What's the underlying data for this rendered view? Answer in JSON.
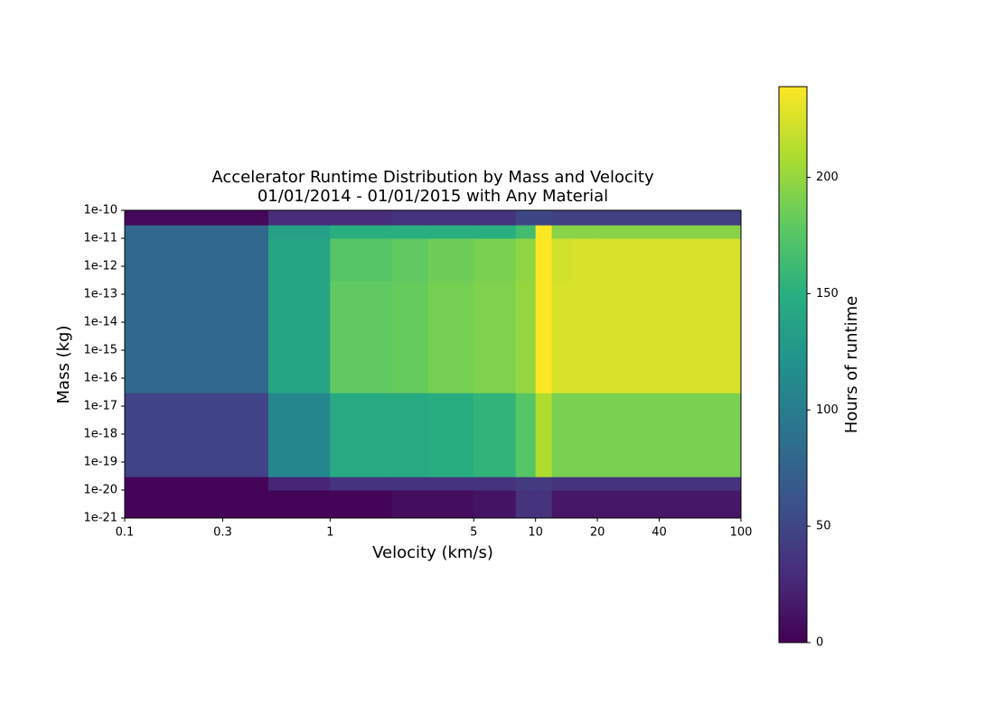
{
  "chart_data": {
    "type": "heatmap",
    "title": "Accelerator Runtime Distribution by Mass and Velocity",
    "subtitle": "01/01/2014 - 01/01/2015 with Any Material",
    "x_label": "Velocity (km/s)",
    "y_label": "Mass (kg)",
    "colorbar_label": "Hours of runtime",
    "colormap": "viridis",
    "x_log": true,
    "y_log": true,
    "x_edges": [
      0.1,
      0.5,
      1,
      2,
      3,
      5,
      8,
      10,
      12,
      15,
      20,
      25,
      100
    ],
    "y_edges": [
      1e-21,
      1e-20,
      3e-20,
      3e-17,
      3e-13,
      1e-11,
      3e-11,
      1e-10
    ],
    "values": [
      [
        3,
        3,
        3,
        8,
        8,
        12,
        35,
        35,
        15,
        15,
        15,
        15
      ],
      [
        3,
        25,
        35,
        35,
        35,
        35,
        40,
        40,
        35,
        35,
        35,
        35
      ],
      [
        48,
        110,
        145,
        145,
        148,
        155,
        175,
        210,
        190,
        190,
        190,
        190
      ],
      [
        80,
        140,
        180,
        182,
        188,
        192,
        200,
        239,
        225,
        225,
        225,
        225
      ],
      [
        80,
        140,
        175,
        180,
        185,
        190,
        198,
        239,
        222,
        225,
        225,
        225
      ],
      [
        80,
        135,
        150,
        150,
        150,
        150,
        165,
        239,
        195,
        195,
        195,
        195
      ],
      [
        5,
        30,
        30,
        35,
        35,
        35,
        50,
        50,
        45,
        45,
        45,
        45
      ]
    ],
    "xlim": [
      0.1,
      100
    ],
    "xticks": [
      0.1,
      0.3,
      1,
      5,
      10,
      20,
      40,
      100
    ],
    "ylim": [
      1e-21,
      1e-10
    ],
    "yticks": [
      {
        "value": 1e-21,
        "label": "1e-21"
      },
      {
        "value": 1e-20,
        "label": "1e-20"
      },
      {
        "value": 1e-19,
        "label": "1e-19"
      },
      {
        "value": 1e-18,
        "label": "1e-18"
      },
      {
        "value": 1e-17,
        "label": "1e-17"
      },
      {
        "value": 1e-16,
        "label": "1e-16"
      },
      {
        "value": 1e-15,
        "label": "1e-15"
      },
      {
        "value": 1e-14,
        "label": "1e-14"
      },
      {
        "value": 1e-13,
        "label": "1e-13"
      },
      {
        "value": 1e-12,
        "label": "1e-12"
      },
      {
        "value": 1e-11,
        "label": "1e-11"
      },
      {
        "value": 1e-10,
        "label": "1e-10"
      }
    ],
    "zlim": [
      0,
      239
    ],
    "zticks": [
      0,
      50,
      100,
      150,
      200
    ]
  }
}
